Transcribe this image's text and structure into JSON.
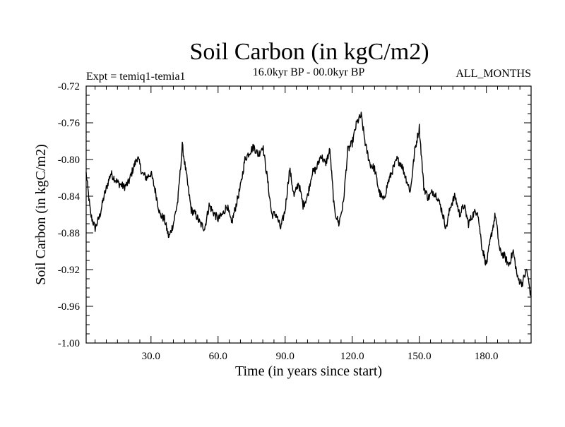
{
  "chart_data": {
    "type": "line",
    "title": "Soil Carbon (in kgC/m2)",
    "subtitle_left": "Expt = temiq1-temia1",
    "subtitle_center": "16.0kyr BP - 00.0kyr BP",
    "subtitle_right": "ALL_MONTHS",
    "xlabel": "Time (in years since start)",
    "ylabel": "Soil Carbon (in kgC/m2)",
    "xlim": [
      1,
      200
    ],
    "ylim": [
      -1.0,
      -0.72
    ],
    "x_ticks": [
      30,
      60,
      90,
      120,
      150,
      180
    ],
    "x_tick_labels": [
      "30.0",
      "60.0",
      "90.0",
      "120.0",
      "150.0",
      "180.0"
    ],
    "y_ticks": [
      -0.72,
      -0.76,
      -0.8,
      -0.84,
      -0.88,
      -0.92,
      -0.96,
      -1.0
    ],
    "y_tick_labels": [
      "-0.72",
      "-0.76",
      "-0.80",
      "-0.84",
      "-0.88",
      "-0.92",
      "-0.96",
      "-1.00"
    ],
    "series": [
      {
        "name": "Soil Carbon",
        "color": "#000000",
        "x": [
          1,
          3,
          5,
          7,
          9,
          12,
          15,
          18,
          20,
          22,
          24,
          26,
          28,
          30,
          32,
          34,
          36,
          38,
          40,
          42,
          44,
          46,
          48,
          50,
          52,
          54,
          56,
          58,
          60,
          62,
          64,
          66,
          68,
          70,
          72,
          74,
          76,
          78,
          80,
          82,
          84,
          86,
          88,
          90,
          92,
          94,
          96,
          98,
          100,
          102,
          104,
          106,
          108,
          110,
          112,
          114,
          116,
          118,
          120,
          122,
          124,
          126,
          128,
          130,
          132,
          134,
          136,
          138,
          140,
          142,
          144,
          146,
          148,
          150,
          152,
          154,
          156,
          158,
          160,
          162,
          164,
          166,
          168,
          170,
          172,
          174,
          176,
          178,
          180,
          182,
          184,
          186,
          188,
          190,
          192,
          194,
          196,
          198,
          200
        ],
        "values": [
          -0.815,
          -0.86,
          -0.875,
          -0.862,
          -0.84,
          -0.815,
          -0.825,
          -0.83,
          -0.825,
          -0.81,
          -0.797,
          -0.815,
          -0.82,
          -0.815,
          -0.835,
          -0.86,
          -0.865,
          -0.885,
          -0.87,
          -0.845,
          -0.785,
          -0.82,
          -0.855,
          -0.86,
          -0.87,
          -0.875,
          -0.85,
          -0.858,
          -0.865,
          -0.86,
          -0.85,
          -0.87,
          -0.85,
          -0.83,
          -0.8,
          -0.792,
          -0.786,
          -0.795,
          -0.785,
          -0.82,
          -0.86,
          -0.86,
          -0.875,
          -0.855,
          -0.81,
          -0.84,
          -0.825,
          -0.85,
          -0.84,
          -0.815,
          -0.81,
          -0.795,
          -0.805,
          -0.79,
          -0.855,
          -0.87,
          -0.848,
          -0.79,
          -0.782,
          -0.76,
          -0.752,
          -0.785,
          -0.805,
          -0.81,
          -0.835,
          -0.845,
          -0.825,
          -0.812,
          -0.8,
          -0.805,
          -0.82,
          -0.835,
          -0.79,
          -0.765,
          -0.83,
          -0.842,
          -0.835,
          -0.84,
          -0.855,
          -0.875,
          -0.85,
          -0.84,
          -0.86,
          -0.85,
          -0.87,
          -0.86,
          -0.855,
          -0.895,
          -0.915,
          -0.885,
          -0.86,
          -0.9,
          -0.905,
          -0.915,
          -0.9,
          -0.93,
          -0.935,
          -0.92,
          -0.95
        ]
      }
    ]
  }
}
